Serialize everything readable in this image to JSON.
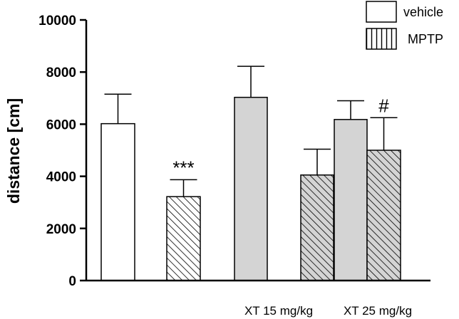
{
  "chart_data": {
    "type": "bar",
    "ylabel": "distance [cm]",
    "ylim": [
      0,
      10000
    ],
    "yticks": [
      0,
      2000,
      4000,
      6000,
      8000,
      10000
    ],
    "grid": false,
    "legend_position": "top-right",
    "bars": [
      {
        "series": "vehicle",
        "value": 6020,
        "error": 1130,
        "annotation": ""
      },
      {
        "series": "MPTP",
        "value": 3220,
        "error": 650,
        "annotation": "***"
      },
      {
        "series": "vehicle",
        "value": 7030,
        "error": 1190,
        "annotation": ""
      },
      {
        "series": "MPTP",
        "value": 4050,
        "error": 990,
        "annotation": ""
      },
      {
        "series": "vehicle",
        "value": 6180,
        "error": 720,
        "annotation": ""
      },
      {
        "series": "MPTP",
        "value": 5000,
        "error": 1250,
        "annotation": "#"
      }
    ],
    "group_labels": [
      "",
      "XT 15 mg/kg",
      "XT 25 mg/kg"
    ],
    "series": [
      {
        "name": "vehicle",
        "pattern": "open"
      },
      {
        "name": "MPTP",
        "pattern": "hatched"
      }
    ],
    "colors": {
      "open_fill": "#ffffff",
      "treated_fill": "#d4d4d4",
      "hatch": "#000000"
    }
  }
}
